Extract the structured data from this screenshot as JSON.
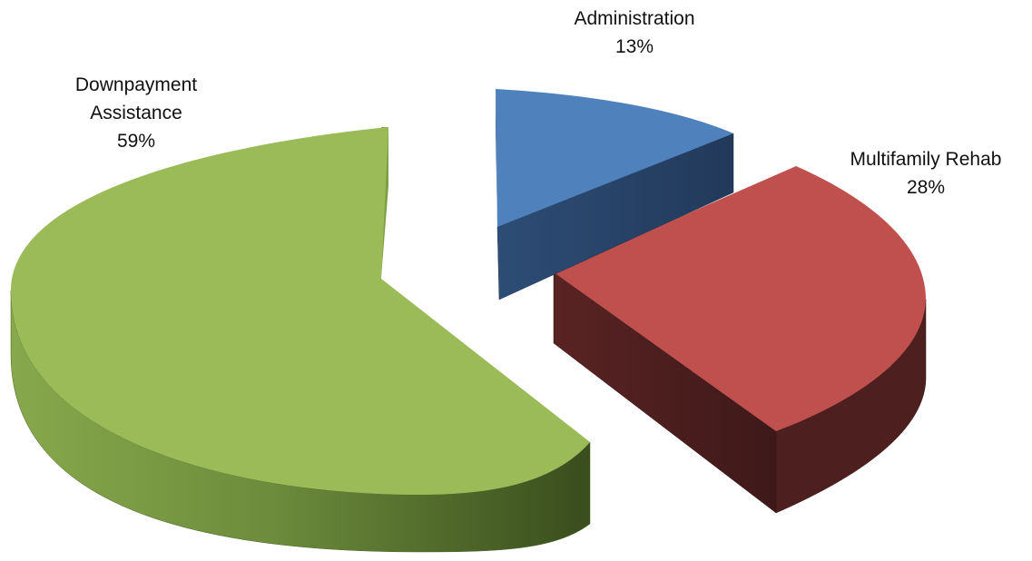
{
  "chart_data": {
    "type": "pie",
    "three_d": true,
    "exploded": true,
    "title": "",
    "legend": "none",
    "slices": [
      {
        "label": "Administration",
        "value": 13,
        "value_label": "13%",
        "color_top": "#4f81bd",
        "color_side": "#2b4a70"
      },
      {
        "label": "Multifamily Rehab",
        "value": 28,
        "value_label": "28%",
        "color_top": "#c0504d",
        "color_side": "#4d1f1f"
      },
      {
        "label": "Downpayment Assistance",
        "label_lines": [
          "Downpayment",
          "Assistance"
        ],
        "value": 59,
        "value_label": "59%",
        "color_top": "#9bbb59",
        "color_side": "#5d7a33"
      }
    ]
  }
}
